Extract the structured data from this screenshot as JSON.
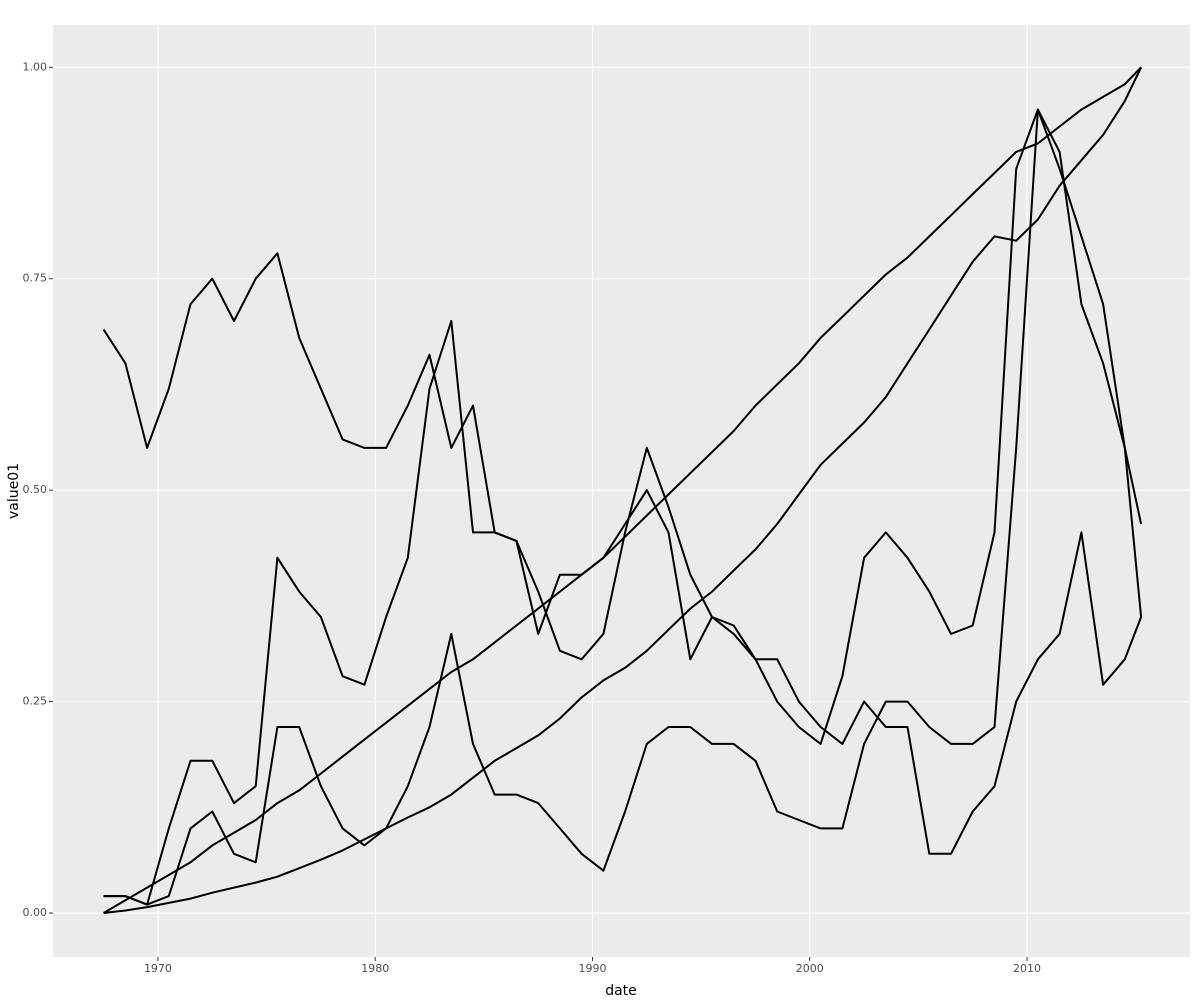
{
  "chart_data": {
    "type": "line",
    "xlabel": "date",
    "ylabel": "value01",
    "x": [
      1967.5,
      1968.5,
      1969.5,
      1970.5,
      1971.5,
      1972.5,
      1973.5,
      1974.5,
      1975.5,
      1976.5,
      1977.5,
      1978.5,
      1979.5,
      1980.5,
      1981.5,
      1982.5,
      1983.5,
      1984.5,
      1985.5,
      1986.5,
      1987.5,
      1988.5,
      1989.5,
      1990.5,
      1991.5,
      1992.5,
      1993.5,
      1994.5,
      1995.5,
      1996.5,
      1997.5,
      1998.5,
      1999.5,
      2000.5,
      2001.5,
      2002.5,
      2003.5,
      2004.5,
      2005.5,
      2006.5,
      2007.5,
      2008.5,
      2009.5,
      2010.5,
      2011.5,
      2012.5,
      2013.5,
      2014.5,
      2015.25
    ],
    "series": [
      {
        "color": "#000000",
        "values": [
          0,
          0.003,
          0.007,
          0.012,
          0.017,
          0.024,
          0.03,
          0.036,
          0.043,
          0.053,
          0.063,
          0.074,
          0.087,
          0.1,
          0.113,
          0.125,
          0.14,
          0.16,
          0.18,
          0.195,
          0.21,
          0.23,
          0.255,
          0.275,
          0.29,
          0.31,
          0.335,
          0.36,
          0.38,
          0.405,
          0.43,
          0.46,
          0.495,
          0.53,
          0.555,
          0.58,
          0.61,
          0.65,
          0.69,
          0.73,
          0.77,
          0.8,
          0.795,
          0.82,
          0.86,
          0.89,
          0.92,
          0.96,
          1.0
        ]
      },
      {
        "color": "#000000",
        "values": [
          0,
          0.015,
          0.03,
          0.045,
          0.06,
          0.08,
          0.095,
          0.11,
          0.13,
          0.145,
          0.165,
          0.185,
          0.205,
          0.225,
          0.245,
          0.265,
          0.285,
          0.3,
          0.32,
          0.34,
          0.36,
          0.38,
          0.4,
          0.42,
          0.445,
          0.47,
          0.495,
          0.52,
          0.545,
          0.57,
          0.6,
          0.625,
          0.65,
          0.68,
          0.705,
          0.73,
          0.755,
          0.775,
          0.8,
          0.825,
          0.85,
          0.875,
          0.9,
          0.91,
          0.93,
          0.95,
          0.965,
          0.98,
          1.0
        ]
      },
      {
        "color": "#000000",
        "values": [
          0.69,
          0.65,
          0.55,
          0.62,
          0.72,
          0.75,
          0.7,
          0.75,
          0.78,
          0.68,
          0.62,
          0.56,
          0.55,
          0.55,
          0.6,
          0.66,
          0.55,
          0.6,
          0.45,
          0.44,
          0.33,
          0.4,
          0.4,
          0.42,
          0.46,
          0.5,
          0.45,
          0.3,
          0.35,
          0.33,
          0.3,
          0.3,
          0.25,
          0.22,
          0.2,
          0.25,
          0.22,
          0.22,
          0.07,
          0.07,
          0.12,
          0.15,
          0.25,
          0.3,
          0.33,
          0.45,
          0.27,
          0.3,
          0.35
        ]
      },
      {
        "color": "#000000",
        "values": [
          0.02,
          0.02,
          0.01,
          0.02,
          0.1,
          0.12,
          0.07,
          0.06,
          0.22,
          0.22,
          0.15,
          0.1,
          0.08,
          0.1,
          0.15,
          0.22,
          0.33,
          0.2,
          0.14,
          0.14,
          0.13,
          0.1,
          0.07,
          0.05,
          0.12,
          0.2,
          0.22,
          0.22,
          0.2,
          0.2,
          0.18,
          0.12,
          0.11,
          0.1,
          0.1,
          0.2,
          0.25,
          0.25,
          0.22,
          0.2,
          0.2,
          0.22,
          0.55,
          0.95,
          0.9,
          0.72,
          0.65,
          0.55,
          0.46
        ]
      },
      {
        "color": "#000000",
        "values": [
          0.02,
          0.02,
          0.01,
          0.1,
          0.18,
          0.18,
          0.13,
          0.15,
          0.42,
          0.38,
          0.35,
          0.28,
          0.27,
          0.35,
          0.42,
          0.62,
          0.7,
          0.45,
          0.45,
          0.44,
          0.38,
          0.31,
          0.3,
          0.33,
          0.45,
          0.55,
          0.48,
          0.4,
          0.35,
          0.34,
          0.3,
          0.25,
          0.22,
          0.2,
          0.28,
          0.42,
          0.45,
          0.42,
          0.38,
          0.33,
          0.34,
          0.45,
          0.88,
          0.95,
          0.88,
          0.8,
          0.72,
          0.55,
          0.35
        ]
      }
    ],
    "xlim": [
      1965.17,
      2017.5
    ],
    "xticks": [
      1970,
      1980,
      1990,
      2000,
      2010
    ],
    "ylim": [
      -0.052,
      1.05
    ],
    "yticks": [
      {
        "value": 0,
        "label": "0.00"
      },
      {
        "value": 0.25,
        "label": "0.25"
      },
      {
        "value": 0.5,
        "label": "0.50"
      },
      {
        "value": 0.75,
        "label": "0.75"
      },
      {
        "value": 1,
        "label": "1.00"
      }
    ],
    "grid": true
  }
}
